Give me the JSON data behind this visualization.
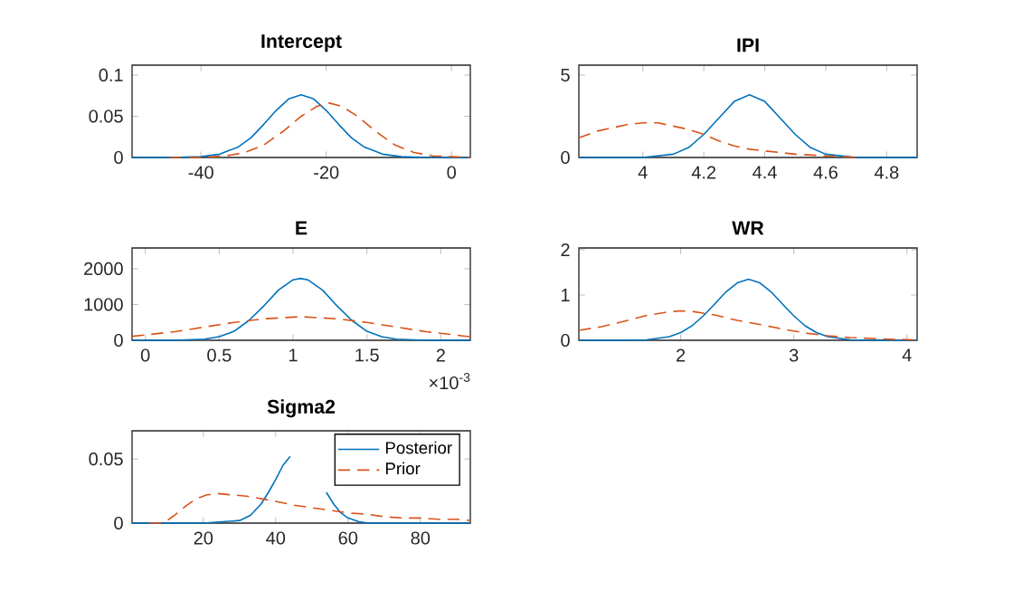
{
  "chart_data": [
    {
      "type": "line",
      "title": "Intercept",
      "xlim": [
        -51,
        3
      ],
      "ylim": [
        0,
        0.112
      ],
      "xticks": [
        -40,
        -20,
        0
      ],
      "yticks": [
        0,
        0.05,
        0.1
      ],
      "grid": false,
      "series": [
        {
          "color": "#0072bd",
          "line_style": "solid",
          "x": [
            -51,
            -45,
            -40,
            -37,
            -34,
            -32,
            -30,
            -28,
            -26,
            -24,
            -22,
            -20,
            -18,
            -16,
            -14,
            -11,
            -8,
            -4,
            0,
            3
          ],
          "values": [
            0,
            0,
            0.001,
            0.004,
            0.013,
            0.024,
            0.04,
            0.057,
            0.071,
            0.076,
            0.071,
            0.057,
            0.04,
            0.024,
            0.013,
            0.004,
            0.001,
            0,
            0,
            0
          ]
        },
        {
          "color": "#d95319",
          "line_style": "dashed",
          "x": [
            -45,
            -40,
            -36,
            -33,
            -30,
            -27,
            -24,
            -21.5,
            -19.5,
            -17.5,
            -15,
            -12,
            -9,
            -6,
            -3,
            0,
            3
          ],
          "values": [
            0,
            0,
            0.002,
            0.006,
            0.015,
            0.031,
            0.05,
            0.062,
            0.066,
            0.062,
            0.05,
            0.031,
            0.015,
            0.006,
            0.002,
            0.001,
            0
          ]
        }
      ]
    },
    {
      "type": "line",
      "title": "IPI",
      "xlim": [
        3.79,
        4.9
      ],
      "ylim": [
        0,
        5.6
      ],
      "xticks": [
        4,
        4.2,
        4.4,
        4.6,
        4.8
      ],
      "yticks": [
        0,
        5
      ],
      "grid": false,
      "series": [
        {
          "color": "#0072bd",
          "line_style": "solid",
          "x": [
            3.79,
            3.9,
            4.0,
            4.1,
            4.15,
            4.2,
            4.25,
            4.3,
            4.35,
            4.4,
            4.45,
            4.5,
            4.55,
            4.6,
            4.7,
            4.8,
            4.9
          ],
          "values": [
            0,
            0,
            0,
            0.2,
            0.6,
            1.4,
            2.4,
            3.4,
            3.8,
            3.4,
            2.4,
            1.4,
            0.6,
            0.2,
            0,
            0,
            0
          ]
        },
        {
          "color": "#d95319",
          "line_style": "dashed",
          "x": [
            3.79,
            3.85,
            3.9,
            3.95,
            4.0,
            4.05,
            4.1,
            4.15,
            4.2,
            4.25,
            4.3,
            4.35,
            4.4,
            4.45,
            4.5,
            4.6,
            4.7
          ],
          "values": [
            1.2,
            1.6,
            1.8,
            2.0,
            2.1,
            2.1,
            1.9,
            1.7,
            1.4,
            1.0,
            0.7,
            0.5,
            0.4,
            0.3,
            0.2,
            0.1,
            0
          ]
        }
      ]
    },
    {
      "type": "line",
      "title": "E",
      "xlim": [
        -0.09,
        2.2
      ],
      "ylim": [
        0,
        2580
      ],
      "xticks": [
        0,
        0.5,
        1,
        1.5,
        2
      ],
      "yticks": [
        0,
        1000,
        2000
      ],
      "grid": false,
      "annotations": [
        "×10$^{-3}$"
      ],
      "series": [
        {
          "color": "#0072bd",
          "line_style": "solid",
          "x": [
            -0.09,
            0.2,
            0.4,
            0.5,
            0.6,
            0.7,
            0.8,
            0.9,
            1.0,
            1.05,
            1.1,
            1.2,
            1.3,
            1.4,
            1.5,
            1.6,
            1.7,
            1.9,
            2.2
          ],
          "values": [
            0,
            0,
            30,
            100,
            250,
            550,
            950,
            1400,
            1690,
            1730,
            1690,
            1400,
            950,
            550,
            250,
            100,
            30,
            0,
            0
          ]
        },
        {
          "color": "#d95319",
          "line_style": "dashed",
          "x": [
            -0.09,
            0.2,
            0.4,
            0.6,
            0.8,
            1.05,
            1.3,
            1.5,
            1.7,
            1.9,
            2.2
          ],
          "values": [
            110,
            240,
            370,
            500,
            600,
            660,
            600,
            500,
            370,
            240,
            100
          ]
        }
      ]
    },
    {
      "type": "line",
      "title": "WR",
      "xlim": [
        1.1,
        4.09
      ],
      "ylim": [
        0,
        2.04
      ],
      "xticks": [
        2,
        3,
        4
      ],
      "yticks": [
        0,
        1,
        2
      ],
      "grid": false,
      "series": [
        {
          "color": "#0072bd",
          "line_style": "solid",
          "x": [
            1.1,
            1.5,
            1.7,
            1.9,
            2.0,
            2.1,
            2.2,
            2.3,
            2.4,
            2.5,
            2.6,
            2.7,
            2.8,
            2.9,
            3.0,
            3.1,
            3.2,
            3.3,
            3.5,
            3.7,
            4.09
          ],
          "values": [
            0,
            0,
            0.01,
            0.08,
            0.17,
            0.32,
            0.54,
            0.8,
            1.07,
            1.27,
            1.35,
            1.27,
            1.07,
            0.8,
            0.54,
            0.32,
            0.17,
            0.08,
            0.01,
            0,
            0
          ]
        },
        {
          "color": "#d95319",
          "line_style": "dashed",
          "x": [
            1.1,
            1.3,
            1.5,
            1.7,
            1.9,
            2.0,
            2.1,
            2.3,
            2.5,
            2.7,
            2.9,
            3.1,
            3.3,
            3.5,
            3.7,
            3.9,
            4.09
          ],
          "values": [
            0.22,
            0.3,
            0.42,
            0.55,
            0.63,
            0.65,
            0.64,
            0.56,
            0.44,
            0.35,
            0.25,
            0.16,
            0.1,
            0.06,
            0.04,
            0.02,
            0.01
          ]
        }
      ]
    },
    {
      "type": "line",
      "title": "Sigma2",
      "xlim": [
        0.3,
        93.8
      ],
      "ylim": [
        0,
        0.072
      ],
      "xticks": [
        20,
        40,
        60,
        80
      ],
      "yticks": [
        0,
        0.05
      ],
      "grid": false,
      "legend": "top right",
      "series": [
        {
          "name": "Posterior",
          "color": "#0072bd",
          "line_style": "solid",
          "x": [
            0.3,
            20,
            30,
            33,
            36,
            38,
            40,
            42,
            44,
            46,
            48,
            50,
            52,
            54,
            56,
            58,
            60,
            63,
            66,
            70,
            93.8
          ],
          "values": [
            0,
            0,
            0.002,
            0.006,
            0.015,
            0.024,
            0.034,
            0.045,
            0.052,
            null,
            null,
            null,
            null,
            0.024,
            0.015,
            0.008,
            0.004,
            0.001,
            0,
            0,
            0
          ]
        },
        {
          "name": "Prior",
          "color": "#d95319",
          "line_style": "dashed",
          "x": [
            5,
            8,
            10,
            12,
            15,
            18,
            21,
            24,
            28,
            32,
            36,
            40,
            45,
            50,
            55,
            60,
            65,
            70,
            75,
            80,
            85,
            90,
            93.8
          ],
          "values": [
            0,
            0,
            0.002,
            0.006,
            0.013,
            0.019,
            0.022,
            0.023,
            0.022,
            0.021,
            0.019,
            0.017,
            0.014,
            0.012,
            0.01,
            0.008,
            0.007,
            0.005,
            0.004,
            0.004,
            0.003,
            0.003,
            0.002
          ]
        }
      ]
    }
  ]
}
